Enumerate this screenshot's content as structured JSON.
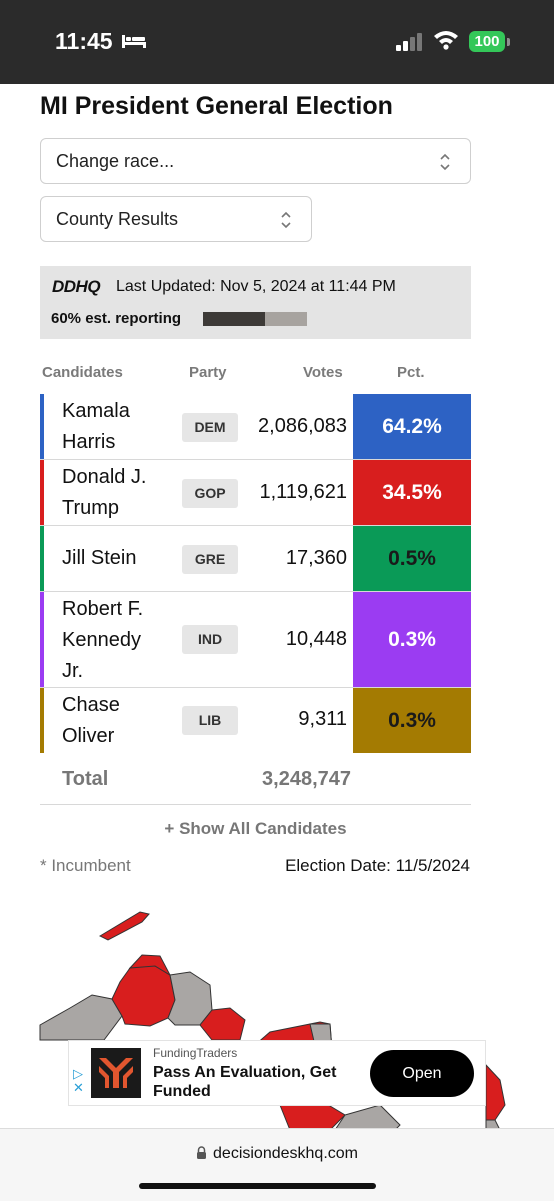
{
  "status_bar": {
    "time": "11:45",
    "battery": "100",
    "icons": [
      "bed-icon",
      "signal-icon",
      "wifi-icon",
      "battery-icon"
    ]
  },
  "page": {
    "title": "MI President General Election"
  },
  "selectors": {
    "race": "Change race...",
    "view": "County Results"
  },
  "info": {
    "logo": "DDHQ",
    "last_updated": "Last Updated: Nov 5, 2024 at 11:44 PM",
    "reporting": "60% est. reporting",
    "reporting_fraction": 0.6
  },
  "table": {
    "headers": {
      "candidates": "Candidates",
      "party": "Party",
      "votes": "Votes",
      "pct": "Pct."
    },
    "rows": [
      {
        "name_lines": [
          "Kamala",
          "Harris"
        ],
        "party": "DEM",
        "votes": "2,086,083",
        "pct": "64.2%",
        "color": "#2d62c4"
      },
      {
        "name_lines": [
          "Donald J.",
          "Trump"
        ],
        "party": "GOP",
        "votes": "1,119,621",
        "pct": "34.5%",
        "color": "#d81e1e"
      },
      {
        "name_lines": [
          "Jill Stein"
        ],
        "party": "GRE",
        "votes": "17,360",
        "pct": "0.5%",
        "color": "#0a9a57"
      },
      {
        "name_lines": [
          "Robert F.",
          "Kennedy",
          "Jr."
        ],
        "party": "IND",
        "votes": "10,448",
        "pct": "0.3%",
        "color": "#9b3cf2"
      },
      {
        "name_lines": [
          "Chase",
          "Oliver"
        ],
        "party": "LIB",
        "votes": "9,311",
        "pct": "0.3%",
        "color": "#a47b02"
      }
    ],
    "total_label": "Total",
    "total_votes": "3,248,747"
  },
  "show_all": "+ Show All Candidates",
  "footer_note": {
    "incumbent": "* Incumbent",
    "election_date": "Election Date: 11/5/2024"
  },
  "map": {
    "county_colors": [
      "#d81e1e",
      "#a9a6a4"
    ]
  },
  "ad": {
    "brand": "FundingTraders",
    "headline": "Pass An Evaluation, Get Funded",
    "button": "Open"
  },
  "browser": {
    "url": "decisiondeskhq.com"
  }
}
